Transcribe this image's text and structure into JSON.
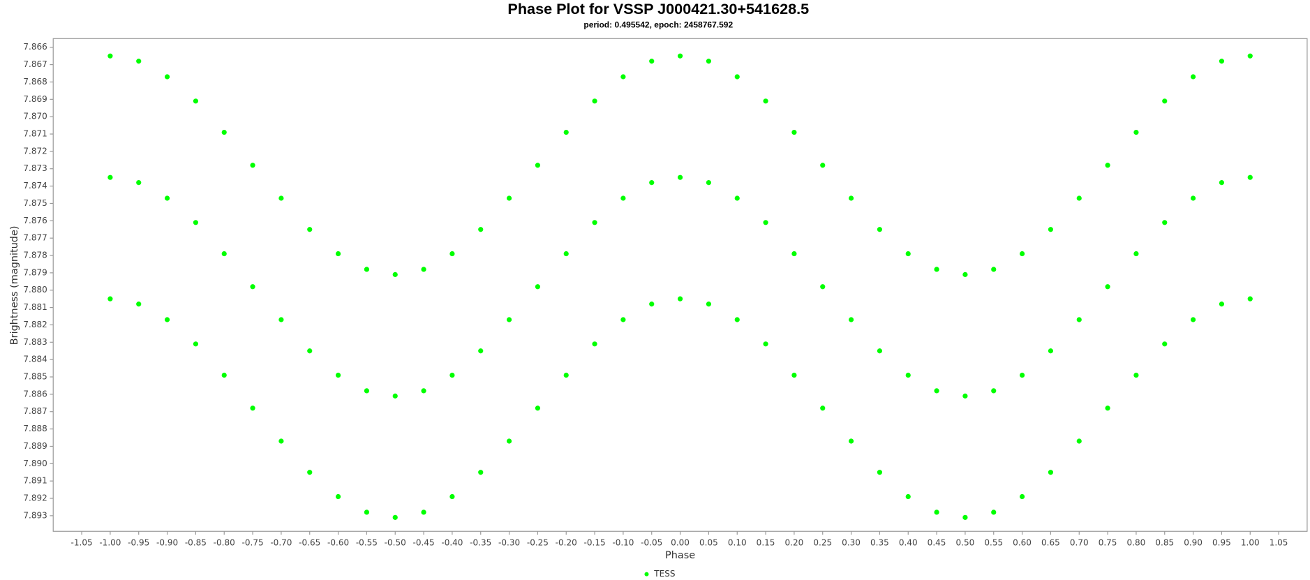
{
  "chart_data": {
    "type": "scatter",
    "title": "Phase Plot for VSSP J000421.30+541628.5",
    "subtitle": "period: 0.495542, epoch: 2458767.592",
    "x_label": "Phase",
    "y_label": "Brightness (magnitude)",
    "xlim": [
      -1.1,
      1.1
    ],
    "ylim": [
      7.8655,
      7.8939
    ],
    "y_inverted": true,
    "legend": "bottom",
    "xticks": [
      -1.05,
      {
        "value": -1,
        "label": "-1.00"
      },
      -0.95,
      {
        "value": -0.9,
        "label": "-0.90"
      },
      -0.85,
      {
        "value": -0.8,
        "label": "-0.80"
      },
      -0.75,
      {
        "value": -0.7,
        "label": "-0.70"
      },
      -0.65,
      {
        "value": -0.6,
        "label": "-0.60"
      },
      -0.55,
      {
        "value": -0.5,
        "label": "-0.50"
      },
      -0.45,
      {
        "value": -0.4,
        "label": "-0.40"
      },
      -0.35,
      {
        "value": -0.3,
        "label": "-0.30"
      },
      -0.25,
      {
        "value": -0.2,
        "label": "-0.20"
      },
      -0.15,
      {
        "value": -0.1,
        "label": "-0.10"
      },
      -0.05,
      {
        "value": 0,
        "label": "0.00"
      },
      0.05,
      {
        "value": 0.1,
        "label": "0.10"
      },
      0.15,
      {
        "value": 0.2,
        "label": "0.20"
      },
      0.25,
      {
        "value": 0.3,
        "label": "0.30"
      },
      0.35,
      {
        "value": 0.4,
        "label": "0.40"
      },
      0.45,
      {
        "value": 0.5,
        "label": "0.50"
      },
      0.55,
      {
        "value": 0.6,
        "label": "0.60"
      },
      0.65,
      {
        "value": 0.7,
        "label": "0.70"
      },
      0.75,
      {
        "value": 0.8,
        "label": "0.80"
      },
      0.85,
      {
        "value": 0.9,
        "label": "0.90"
      },
      0.95,
      {
        "value": 1,
        "label": "1.00"
      },
      1.05
    ],
    "yticks": [
      7.866,
      7.867,
      7.868,
      7.869,
      {
        "value": 7.87,
        "label": "7.870"
      },
      7.871,
      7.872,
      7.873,
      7.874,
      7.875,
      7.876,
      7.877,
      7.878,
      7.879,
      {
        "value": 7.88,
        "label": "7.880"
      },
      7.881,
      7.882,
      7.883,
      7.884,
      7.885,
      7.886,
      7.887,
      7.888,
      7.889,
      {
        "value": 7.89,
        "label": "7.890"
      },
      7.891,
      7.892,
      7.893
    ],
    "x": [
      -1,
      -1,
      -1,
      -0.95,
      -0.95,
      -0.95,
      -0.9,
      -0.9,
      -0.9,
      -0.85,
      -0.85,
      -0.85,
      -0.8,
      -0.8,
      -0.8,
      -0.75,
      -0.75,
      -0.75,
      -0.7,
      -0.7,
      -0.7,
      -0.65,
      -0.65,
      -0.65,
      -0.6,
      -0.6,
      -0.6,
      -0.55,
      -0.55,
      -0.55,
      -0.5,
      -0.5,
      -0.5,
      -0.45,
      -0.45,
      -0.45,
      -0.4,
      -0.4,
      -0.4,
      -0.35,
      -0.35,
      -0.35,
      -0.3,
      -0.3,
      -0.3,
      -0.25,
      -0.25,
      -0.25,
      -0.2,
      -0.2,
      -0.2,
      -0.15,
      -0.15,
      -0.15,
      -0.1,
      -0.1,
      -0.1,
      -0.05,
      -0.05,
      -0.05,
      0,
      0,
      0,
      0.05,
      0.05,
      0.05,
      0.1,
      0.1,
      0.1,
      0.15,
      0.15,
      0.15,
      0.2,
      0.2,
      0.2,
      0.25,
      0.25,
      0.25,
      0.3,
      0.3,
      0.3,
      0.35,
      0.35,
      0.35,
      0.4,
      0.4,
      0.4,
      0.45,
      0.45,
      0.45,
      0.5,
      0.5,
      0.5,
      0.55,
      0.55,
      0.55,
      0.6,
      0.6,
      0.6,
      0.65,
      0.65,
      0.65,
      0.7,
      0.7,
      0.7,
      0.75,
      0.75,
      0.75,
      0.8,
      0.8,
      0.8,
      0.85,
      0.85,
      0.85,
      0.9,
      0.9,
      0.9,
      0.95,
      0.95,
      0.95,
      1,
      1,
      1
    ],
    "series": [
      {
        "name": "TESS",
        "color": "#00ff00",
        "values": [
          7.8665,
          7.8735,
          7.8805,
          7.8668,
          7.8738,
          7.8808,
          7.8677,
          7.8747,
          7.8817,
          7.8691,
          7.8761,
          7.8831,
          7.8709,
          7.8779,
          7.8849,
          7.8728,
          7.8798,
          7.8868,
          7.8747,
          7.8817,
          7.8887,
          7.8765,
          7.8835,
          7.8905,
          7.8779,
          7.8849,
          7.8919,
          7.8788,
          7.8858,
          7.8928,
          7.8791,
          7.8861,
          7.8931,
          7.8788,
          7.8858,
          7.8928,
          7.8779,
          7.8849,
          7.8919,
          7.8765,
          7.8835,
          7.8905,
          7.8747,
          7.8817,
          7.8887,
          7.8728,
          7.8798,
          7.8868,
          7.8709,
          7.8779,
          7.8849,
          7.8691,
          7.8761,
          7.8831,
          7.8677,
          7.8747,
          7.8817,
          7.8668,
          7.8738,
          7.8808,
          7.8665,
          7.8735,
          7.8805,
          7.8668,
          7.8738,
          7.8808,
          7.8677,
          7.8747,
          7.8817,
          7.8691,
          7.8761,
          7.8831,
          7.8709,
          7.8779,
          7.8849,
          7.8728,
          7.8798,
          7.8868,
          7.8747,
          7.8817,
          7.8887,
          7.8765,
          7.8835,
          7.8905,
          7.8779,
          7.8849,
          7.8919,
          7.8788,
          7.8858,
          7.8928,
          7.8791,
          7.8861,
          7.8931,
          7.8788,
          7.8858,
          7.8928,
          7.8779,
          7.8849,
          7.8919,
          7.8765,
          7.8835,
          7.8905,
          7.8747,
          7.8817,
          7.8887,
          7.8728,
          7.8798,
          7.8868,
          7.8709,
          7.8779,
          7.8849,
          7.8691,
          7.8761,
          7.8831,
          7.8677,
          7.8747,
          7.8817,
          7.8668,
          7.8738,
          7.8808,
          7.8665,
          7.8735,
          7.8805
        ]
      }
    ]
  }
}
